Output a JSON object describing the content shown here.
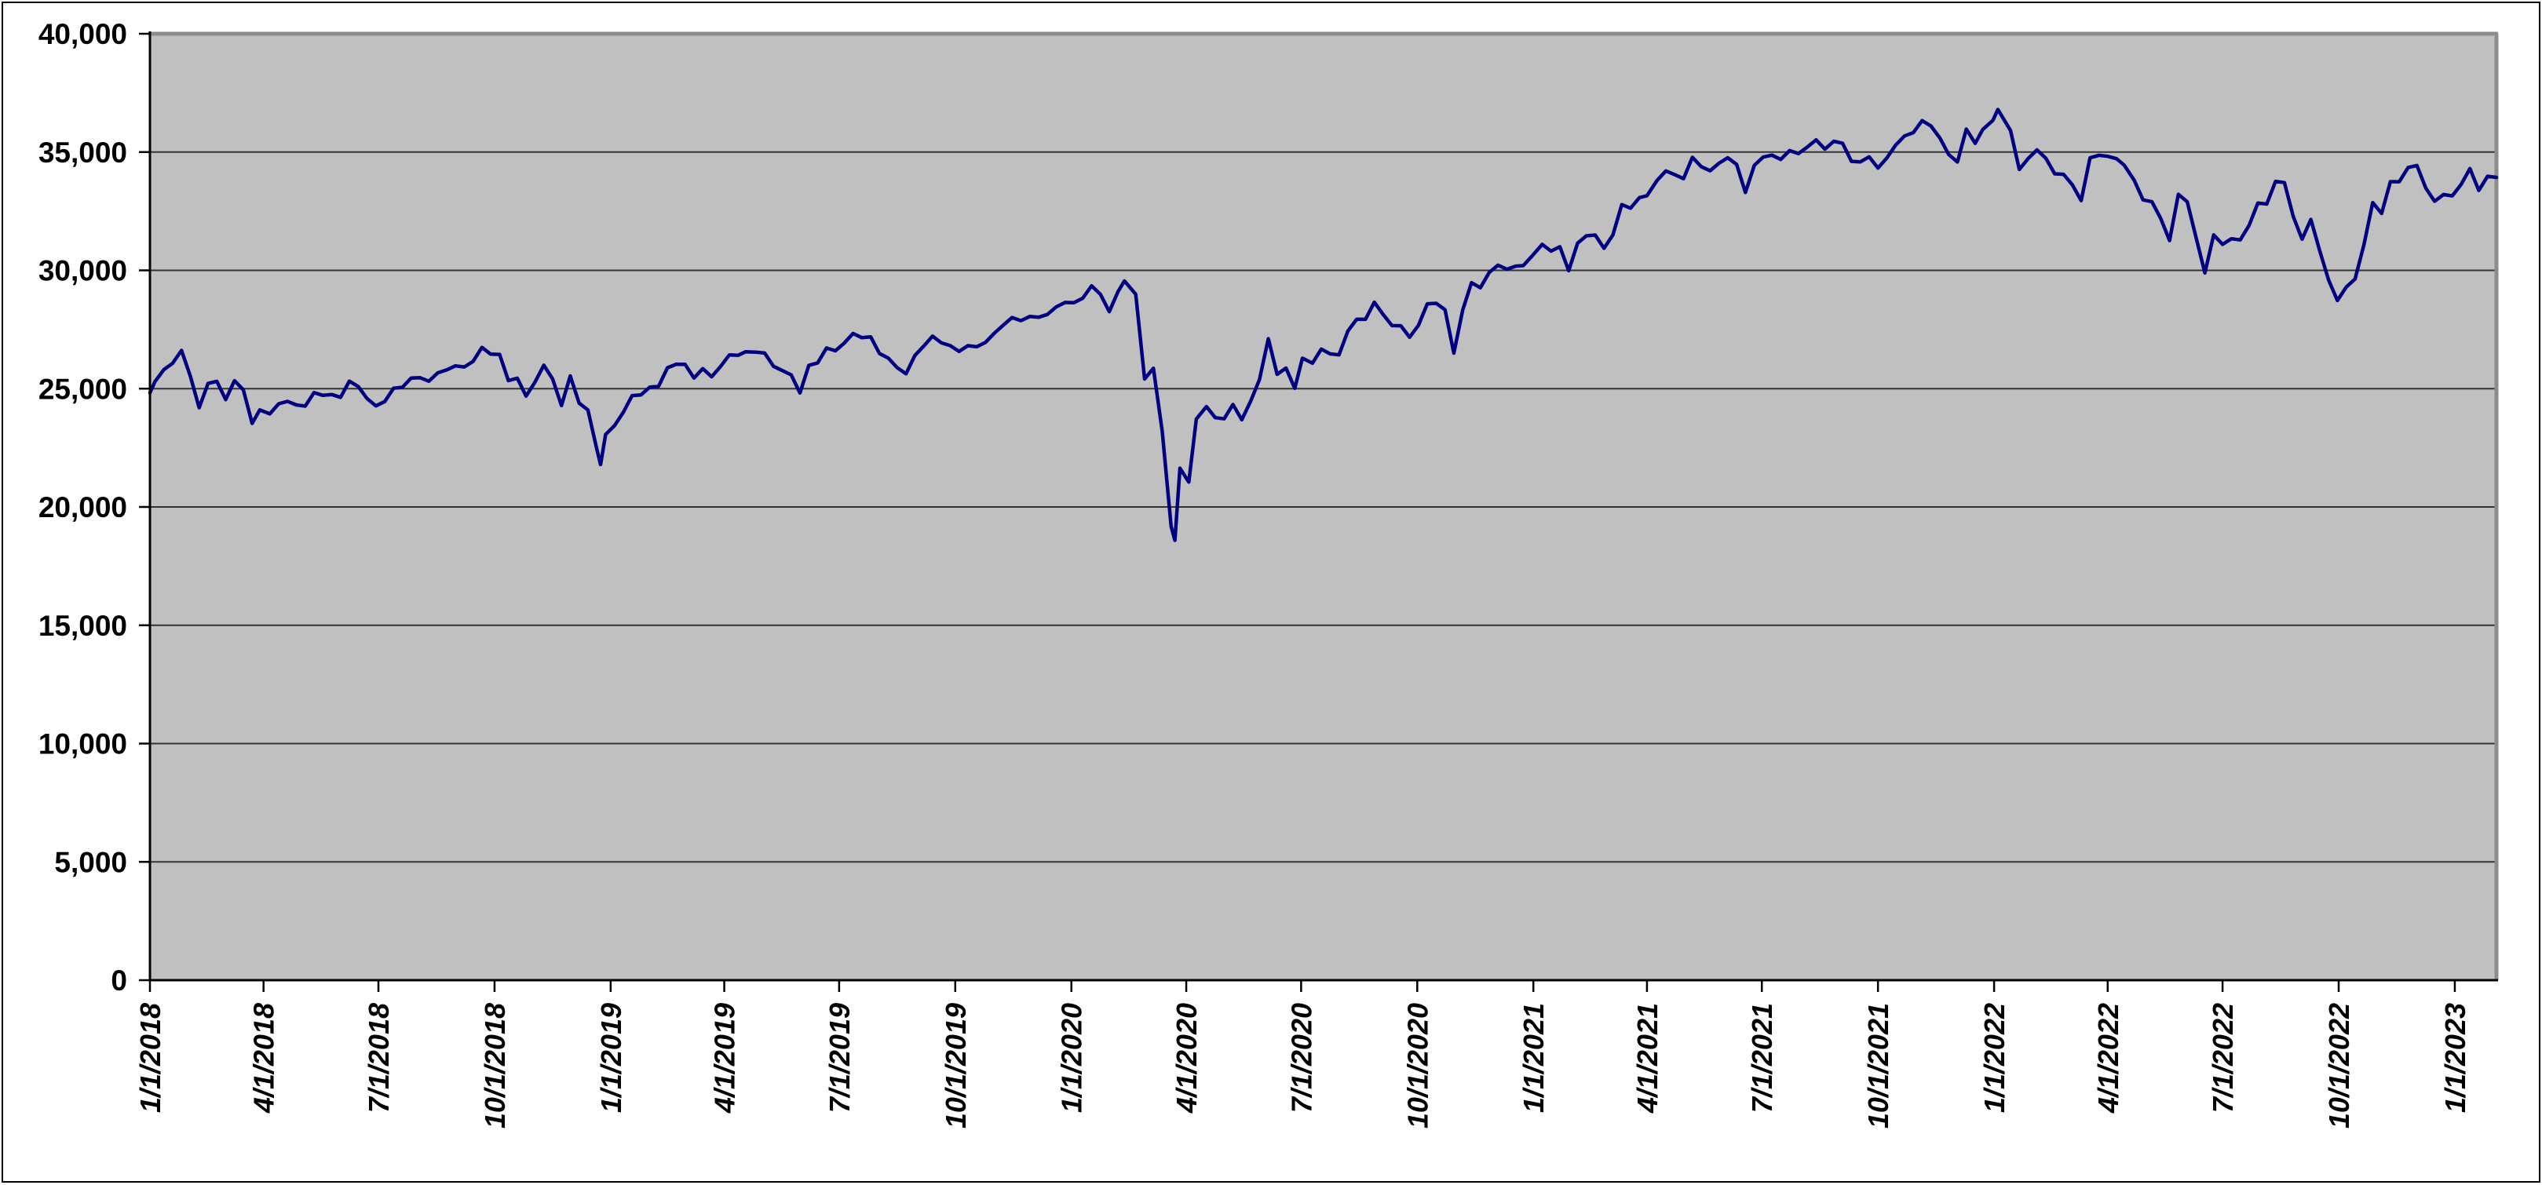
{
  "chart_data": {
    "type": "line",
    "title": "",
    "xlabel": "",
    "ylabel": "",
    "legend_position": "none",
    "grid": "horizontal",
    "ylim": [
      0,
      40000
    ],
    "y_ticks": [
      {
        "value": 0,
        "label": "0"
      },
      {
        "value": 5000,
        "label": "5,000"
      },
      {
        "value": 10000,
        "label": "10,000"
      },
      {
        "value": 15000,
        "label": "15,000"
      },
      {
        "value": 20000,
        "label": "20,000"
      },
      {
        "value": 25000,
        "label": "25,000"
      },
      {
        "value": 30000,
        "label": "30,000"
      },
      {
        "value": 35000,
        "label": "35,000"
      },
      {
        "value": 40000,
        "label": "40,000"
      }
    ],
    "x_ticks": [
      "1/1/2018",
      "4/1/2018",
      "7/1/2018",
      "10/1/2018",
      "1/1/2019",
      "4/1/2019",
      "7/1/2019",
      "10/1/2019",
      "1/1/2020",
      "4/1/2020",
      "7/1/2020",
      "10/1/2020",
      "1/1/2021",
      "4/1/2021",
      "7/1/2021",
      "10/1/2021",
      "1/1/2022",
      "4/1/2022",
      "7/1/2022",
      "10/1/2022",
      "1/1/2023"
    ],
    "series": [
      {
        "color": "#000080",
        "dates": [
          "1/1/2018",
          "1/5/2018",
          "1/12/2018",
          "1/19/2018",
          "1/26/2018",
          "2/2/2018",
          "2/9/2018",
          "2/16/2018",
          "2/23/2018",
          "3/2/2018",
          "3/9/2018",
          "3/16/2018",
          "3/23/2018",
          "3/29/2018",
          "4/6/2018",
          "4/13/2018",
          "4/20/2018",
          "4/27/2018",
          "5/4/2018",
          "5/11/2018",
          "5/18/2018",
          "5/25/2018",
          "6/1/2018",
          "6/8/2018",
          "6/15/2018",
          "6/22/2018",
          "6/29/2018",
          "7/6/2018",
          "7/13/2018",
          "7/20/2018",
          "7/27/2018",
          "8/3/2018",
          "8/10/2018",
          "8/17/2018",
          "8/24/2018",
          "8/31/2018",
          "9/7/2018",
          "9/14/2018",
          "9/21/2018",
          "9/28/2018",
          "10/5/2018",
          "10/12/2018",
          "10/19/2018",
          "10/26/2018",
          "11/2/2018",
          "11/9/2018",
          "11/16/2018",
          "11/23/2018",
          "11/30/2018",
          "12/7/2018",
          "12/14/2018",
          "12/21/2018",
          "12/24/2018",
          "12/28/2018",
          "1/4/2019",
          "1/11/2019",
          "1/18/2019",
          "1/25/2019",
          "2/1/2019",
          "2/8/2019",
          "2/15/2019",
          "2/22/2019",
          "3/1/2019",
          "3/8/2019",
          "3/15/2019",
          "3/22/2019",
          "3/29/2019",
          "4/5/2019",
          "4/12/2019",
          "4/18/2019",
          "4/26/2019",
          "5/3/2019",
          "5/10/2019",
          "5/17/2019",
          "5/24/2019",
          "5/31/2019",
          "6/7/2019",
          "6/14/2019",
          "6/21/2019",
          "6/28/2019",
          "7/5/2019",
          "7/12/2019",
          "7/19/2019",
          "7/26/2019",
          "8/2/2019",
          "8/9/2019",
          "8/16/2019",
          "8/23/2019",
          "8/30/2019",
          "9/6/2019",
          "9/13/2019",
          "9/20/2019",
          "9/27/2019",
          "10/4/2019",
          "10/11/2019",
          "10/18/2019",
          "10/25/2019",
          "11/1/2019",
          "11/8/2019",
          "11/15/2019",
          "11/22/2019",
          "11/29/2019",
          "12/6/2019",
          "12/13/2019",
          "12/20/2019",
          "12/27/2019",
          "1/3/2020",
          "1/10/2020",
          "1/17/2020",
          "1/24/2020",
          "1/31/2020",
          "2/7/2020",
          "2/12/2020",
          "2/21/2020",
          "2/28/2020",
          "3/6/2020",
          "3/13/2020",
          "3/20/2020",
          "3/23/2020",
          "3/27/2020",
          "4/3/2020",
          "4/9/2020",
          "4/17/2020",
          "4/24/2020",
          "5/1/2020",
          "5/8/2020",
          "5/15/2020",
          "5/22/2020",
          "5/29/2020",
          "6/5/2020",
          "6/12/2020",
          "6/19/2020",
          "6/26/2020",
          "7/2/2020",
          "7/10/2020",
          "7/17/2020",
          "7/24/2020",
          "7/31/2020",
          "8/7/2020",
          "8/14/2020",
          "8/21/2020",
          "8/28/2020",
          "9/4/2020",
          "9/11/2020",
          "9/18/2020",
          "9/25/2020",
          "10/2/2020",
          "10/9/2020",
          "10/16/2020",
          "10/23/2020",
          "10/30/2020",
          "11/6/2020",
          "11/13/2020",
          "11/20/2020",
          "11/27/2020",
          "12/4/2020",
          "12/11/2020",
          "12/18/2020",
          "12/24/2020",
          "12/31/2020",
          "1/8/2021",
          "1/15/2021",
          "1/22/2021",
          "1/29/2021",
          "2/5/2021",
          "2/12/2021",
          "2/19/2021",
          "2/26/2021",
          "3/5/2021",
          "3/12/2021",
          "3/19/2021",
          "3/26/2021",
          "4/1/2021",
          "4/9/2021",
          "4/16/2021",
          "4/23/2021",
          "4/30/2021",
          "5/7/2021",
          "5/14/2021",
          "5/21/2021",
          "5/28/2021",
          "6/4/2021",
          "6/11/2021",
          "6/18/2021",
          "6/25/2021",
          "7/2/2021",
          "7/9/2021",
          "7/16/2021",
          "7/23/2021",
          "7/30/2021",
          "8/6/2021",
          "8/13/2021",
          "8/20/2021",
          "8/27/2021",
          "9/3/2021",
          "9/10/2021",
          "9/17/2021",
          "9/24/2021",
          "10/1/2021",
          "10/8/2021",
          "10/15/2021",
          "10/22/2021",
          "10/29/2021",
          "11/5/2021",
          "11/12/2021",
          "11/19/2021",
          "11/26/2021",
          "12/3/2021",
          "12/10/2021",
          "12/17/2021",
          "12/23/2021",
          "12/31/2021",
          "1/4/2022",
          "1/14/2022",
          "1/21/2022",
          "1/28/2022",
          "2/4/2022",
          "2/11/2022",
          "2/18/2022",
          "2/25/2022",
          "3/4/2022",
          "3/11/2022",
          "3/18/2022",
          "3/25/2022",
          "4/1/2022",
          "4/8/2022",
          "4/14/2022",
          "4/22/2022",
          "4/29/2022",
          "5/6/2022",
          "5/13/2022",
          "5/20/2022",
          "5/27/2022",
          "6/3/2022",
          "6/10/2022",
          "6/17/2022",
          "6/24/2022",
          "7/1/2022",
          "7/8/2022",
          "7/15/2022",
          "7/22/2022",
          "7/29/2022",
          "8/5/2022",
          "8/12/2022",
          "8/19/2022",
          "8/26/2022",
          "9/2/2022",
          "9/9/2022",
          "9/16/2022",
          "9/23/2022",
          "9/30/2022",
          "10/7/2022",
          "10/14/2022",
          "10/21/2022",
          "10/28/2022",
          "11/4/2022",
          "11/11/2022",
          "11/18/2022",
          "11/25/2022",
          "12/2/2022",
          "12/9/2022",
          "12/16/2022",
          "12/23/2022",
          "12/30/2022",
          "1/6/2023",
          "1/13/2023",
          "1/20/2023",
          "1/27/2023",
          "2/3/2023"
        ],
        "values": [
          24824,
          25296,
          25803,
          26072,
          26617,
          25521,
          24191,
          25219,
          25310,
          24538,
          25336,
          24947,
          23533,
          24103,
          23933,
          24360,
          24463,
          24311,
          24263,
          24831,
          24715,
          24753,
          24635,
          25317,
          25090,
          24581,
          24271,
          24456,
          25019,
          25058,
          25451,
          25463,
          25313,
          25669,
          25790,
          25965,
          25917,
          26154,
          26744,
          26458,
          26447,
          25340,
          25444,
          24688,
          25271,
          25989,
          25413,
          24286,
          25538,
          24389,
          24101,
          22445,
          21792,
          23062,
          23433,
          23996,
          24706,
          24737,
          25064,
          25106,
          25883,
          26032,
          26026,
          25450,
          25849,
          25502,
          25929,
          26425,
          26412,
          26560,
          26543,
          26505,
          25942,
          25764,
          25586,
          24815,
          25984,
          26090,
          26719,
          26600,
          26922,
          27332,
          27154,
          27192,
          26485,
          26287,
          25886,
          25629,
          26403,
          26797,
          27220,
          26935,
          26820,
          26574,
          26817,
          26770,
          26958,
          27347,
          27681,
          28005,
          27875,
          28051,
          28015,
          28135,
          28455,
          28645,
          28635,
          28824,
          29348,
          28990,
          28256,
          29103,
          29551,
          28992,
          25409,
          25865,
          23186,
          19174,
          18592,
          21637,
          21053,
          23719,
          24242,
          23775,
          23724,
          24331,
          23685,
          24465,
          25383,
          27111,
          25606,
          25871,
          25016,
          26287,
          26075,
          26672,
          26470,
          26428,
          27433,
          27931,
          27930,
          28654,
          28133,
          27666,
          27657,
          27174,
          27683,
          28587,
          28606,
          28336,
          26502,
          28323,
          29480,
          29263,
          29910,
          30218,
          30046,
          30179,
          30200,
          30606,
          31098,
          30814,
          30997,
          29983,
          31148,
          31458,
          31494,
          30932,
          31496,
          32779,
          32628,
          33073,
          33153,
          33801,
          34201,
          34043,
          33875,
          34778,
          34382,
          34208,
          34529,
          34756,
          34480,
          33290,
          34434,
          34786,
          34870,
          34688,
          35062,
          34935,
          35209,
          35515,
          35120,
          35456,
          35369,
          34608,
          34585,
          34798,
          34326,
          34746,
          35295,
          35677,
          35820,
          36328,
          36100,
          35602,
          34899,
          34580,
          35971,
          35365,
          35950,
          36338,
          36800,
          35912,
          34265,
          34725,
          35090,
          34738,
          34079,
          34059,
          33615,
          32944,
          34755,
          34861,
          34818,
          34721,
          34451,
          33811,
          32977,
          32899,
          32197,
          31262,
          33213,
          32900,
          31393,
          29889,
          31500,
          31097,
          31338,
          31288,
          31899,
          32845,
          32803,
          33761,
          33707,
          32283,
          31318,
          32152,
          30822,
          29590,
          28726,
          29297,
          29635,
          31083,
          32862,
          32403,
          33748,
          33746,
          34347,
          34430,
          33476,
          32920,
          33204,
          33147,
          33631,
          34303,
          33375,
          33978,
          33926
        ]
      }
    ]
  },
  "colors": {
    "page_bg": "#ffffff",
    "chart_border": "#000000",
    "plot_bg": "#c0c0c0",
    "plot_border": "#8c8c8c",
    "gridline": "#333333",
    "axis": "#000000",
    "line": "#000080",
    "label": "#000000"
  }
}
